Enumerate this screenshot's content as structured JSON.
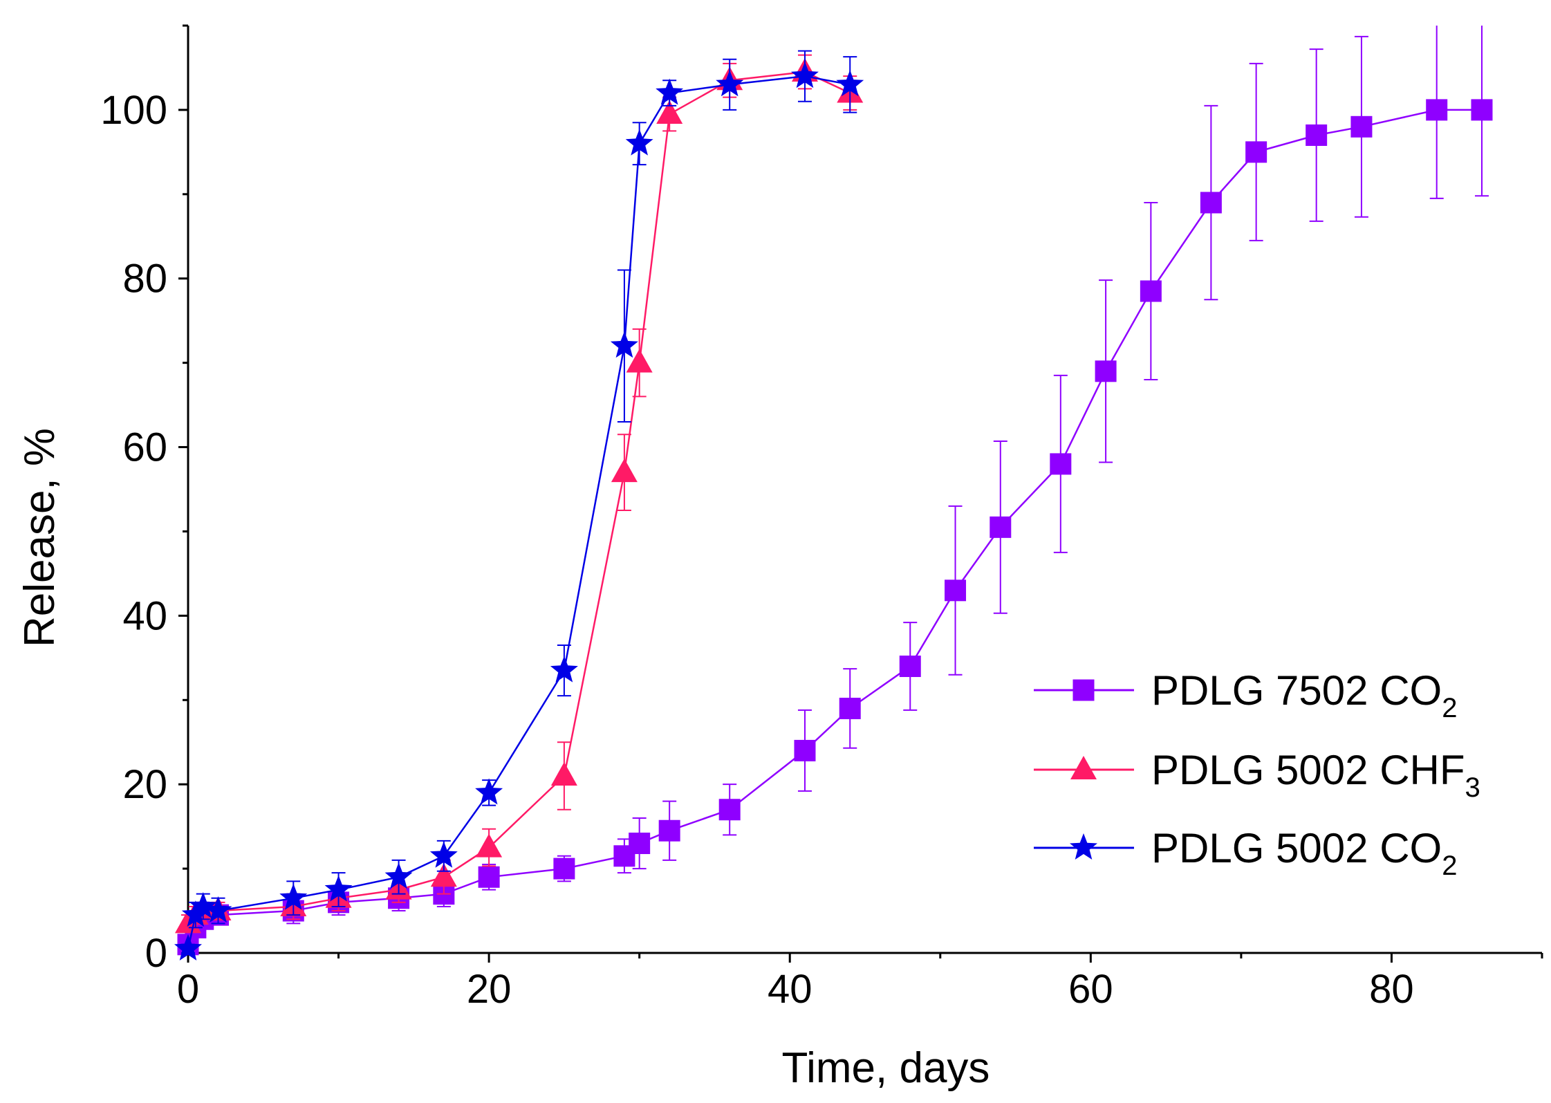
{
  "chart_data": {
    "type": "line",
    "title": "",
    "xlabel": "Time, days",
    "ylabel": "Release, %",
    "xlim": [
      0,
      90
    ],
    "ylim": [
      0,
      110
    ],
    "xticks": [
      0,
      20,
      40,
      60,
      80
    ],
    "yticks": [
      0,
      20,
      40,
      60,
      80,
      100
    ],
    "grid": false,
    "legend_position": "right",
    "series": [
      {
        "name": "PDLG 7502 CO",
        "subscript": "2",
        "color": "#8f00ff",
        "marker": "square",
        "x": [
          0,
          0.5,
          1,
          2,
          7,
          10,
          14,
          17,
          20,
          25,
          29,
          30,
          32,
          36,
          41,
          44,
          48,
          51,
          54,
          58,
          61,
          64,
          68,
          71,
          75,
          78,
          83,
          86
        ],
        "y": [
          1,
          3,
          4,
          4.5,
          5,
          6,
          6.5,
          7,
          9,
          10,
          11.5,
          13,
          14.5,
          17,
          24,
          29,
          34,
          43,
          50.5,
          58,
          69,
          78.5,
          89,
          95,
          97,
          98,
          100,
          100
        ],
        "err": [
          0.8,
          1,
          1,
          1,
          1.5,
          1.5,
          1.5,
          1.5,
          1.5,
          1.5,
          2,
          3,
          3.5,
          3,
          4.8,
          4.7,
          5.2,
          10,
          10.2,
          10.5,
          10.8,
          10.5,
          11.5,
          10.5,
          10.2,
          10.7,
          10.5,
          10.2
        ]
      },
      {
        "name": "PDLG 5002 CHF",
        "subscript": "3",
        "color": "#ff1a66",
        "marker": "triangle",
        "x": [
          0,
          0.5,
          1,
          2,
          7,
          10,
          14,
          17,
          20,
          25,
          29,
          30,
          32,
          36,
          41,
          44
        ],
        "y": [
          3.5,
          4.5,
          5,
          5,
          5.5,
          6.5,
          7.5,
          9,
          12.5,
          21,
          57,
          70,
          99.5,
          103.5,
          104.5,
          102
        ],
        "err": [
          1,
          1,
          1,
          1,
          1.5,
          1.5,
          1.5,
          2,
          2.2,
          4,
          4.5,
          4,
          2,
          2,
          2,
          2
        ]
      },
      {
        "name": "PDLG 5002 CO",
        "subscript": "2",
        "color": "#0000e6",
        "marker": "star",
        "x": [
          0,
          0.5,
          1,
          2,
          7,
          10,
          14,
          17,
          20,
          25,
          29,
          30,
          32,
          36,
          41,
          44
        ],
        "y": [
          0.5,
          4.5,
          5.5,
          5,
          6.5,
          7.5,
          9,
          11.5,
          19,
          33.5,
          72,
          96,
          102,
          103,
          104,
          103
        ],
        "err": [
          0.5,
          1.5,
          1.5,
          1.5,
          2,
          2,
          2,
          1.8,
          1.5,
          3,
          9,
          2.5,
          1.5,
          3,
          3,
          3.3
        ]
      }
    ]
  }
}
